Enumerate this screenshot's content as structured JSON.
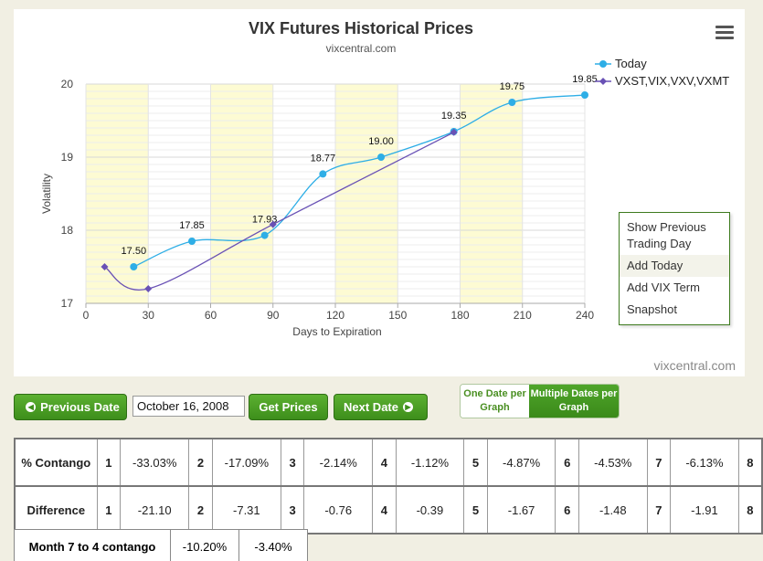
{
  "chart": {
    "title": "VIX Futures Historical Prices",
    "subtitle": "vixcentral.com",
    "credit": "vixcentral.com"
  },
  "chart_data": {
    "type": "line",
    "xlabel": "Days to Expiration",
    "ylabel": "Volatility",
    "xlim": [
      0,
      240
    ],
    "ylim": [
      17,
      20
    ],
    "xticks": [
      0,
      30,
      60,
      90,
      120,
      150,
      180,
      210,
      240
    ],
    "yticks": [
      17,
      18,
      19,
      20
    ],
    "shaded_bands": [
      [
        0,
        30
      ],
      [
        60,
        90
      ],
      [
        120,
        150
      ],
      [
        180,
        210
      ]
    ],
    "series": [
      {
        "name": "Today",
        "color": "#2eaee6",
        "x": [
          23,
          51,
          86,
          114,
          142,
          177,
          205,
          240
        ],
        "y": [
          17.5,
          17.85,
          17.93,
          18.77,
          19.0,
          19.35,
          19.75,
          19.85
        ],
        "labels": [
          "17.50",
          "17.85",
          "17.93",
          "18.77",
          "19.00",
          "19.35",
          "19.75",
          "19.85"
        ]
      },
      {
        "name": "VXST,VIX,VXV,VXMT",
        "color": "#6951b5",
        "x": [
          9,
          30,
          90,
          177
        ],
        "y": [
          17.5,
          17.2,
          18.08,
          19.34
        ]
      }
    ]
  },
  "menu": {
    "items": [
      "Show Previous Trading Day",
      "Add Today",
      "Add VIX Term",
      "Snapshot"
    ]
  },
  "controls": {
    "prev_label": "Previous Date",
    "date_value": "October 16, 2008",
    "get_prices_label": "Get Prices",
    "next_label": "Next Date",
    "one_date": "One Date per Graph",
    "multi_dates": "Multiple Dates per Graph"
  },
  "contango": {
    "row1_label": "% Contango",
    "row2_label": "Difference",
    "months": [
      "1",
      "2",
      "3",
      "4",
      "5",
      "6",
      "7",
      "8"
    ],
    "contango_values": [
      "-33.03%",
      "-17.09%",
      "-2.14%",
      "-1.12%",
      "-4.87%",
      "-4.53%",
      "-6.13%"
    ],
    "difference_values": [
      "-21.10",
      "-7.31",
      "-0.76",
      "-0.39",
      "-1.67",
      "-1.48",
      "-1.91"
    ]
  },
  "month7": {
    "label": "Month 7 to 4 contango",
    "values": [
      "-10.20%",
      "-3.40%"
    ]
  }
}
